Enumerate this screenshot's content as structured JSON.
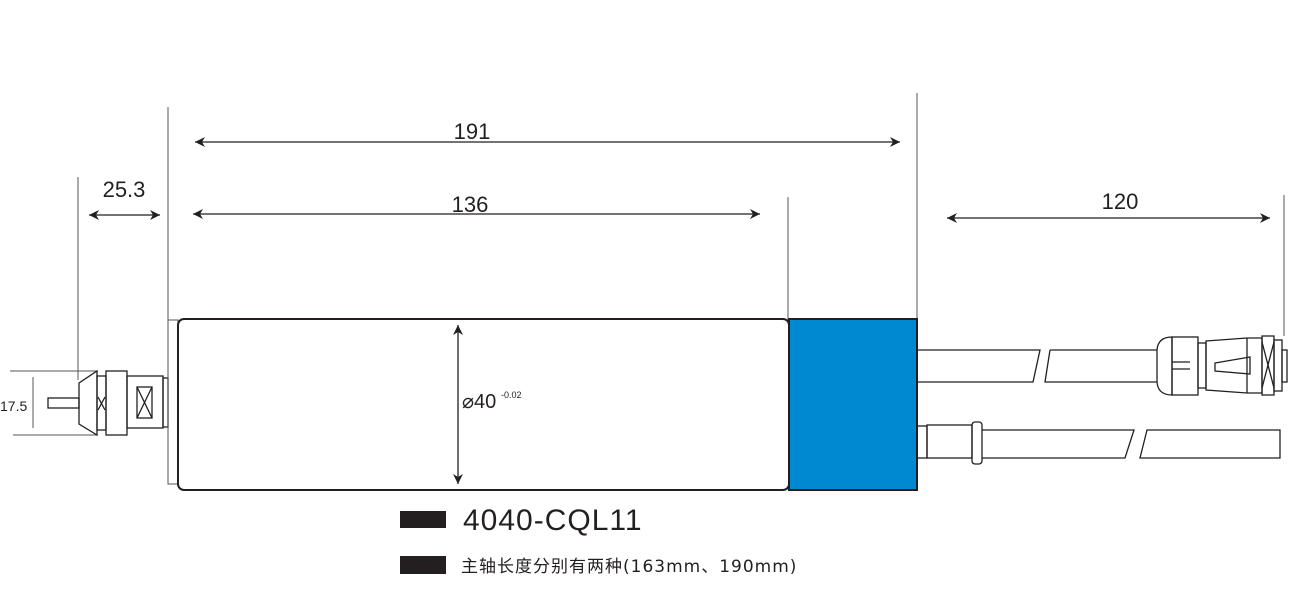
{
  "dimensions": {
    "overall_length": "191",
    "body_length": "136",
    "connector_length": "25.3",
    "cable_length": "120",
    "shaft_diameter": "17.5",
    "body_diameter": "⌀40",
    "body_diameter_tolerance": "-0.02"
  },
  "labels": {
    "model": "4040-CQL11",
    "note": "主轴长度分别有两种(163mm、190mm)"
  },
  "colors": {
    "end_cap": "#0088d1",
    "line": "#231f20"
  }
}
